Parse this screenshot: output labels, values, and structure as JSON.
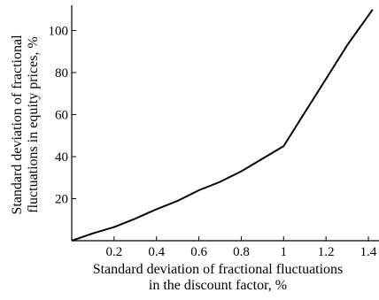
{
  "chart_data": {
    "type": "line",
    "xlabel": [
      "Standard deviation of fractional fluctuations",
      "in the discount factor, %"
    ],
    "ylabel": [
      "Standard deviation of fractional",
      "fluctuations in equity prices, %"
    ],
    "xlim": [
      0,
      1.45
    ],
    "ylim": [
      0,
      112
    ],
    "x_ticks": [
      0.2,
      0.4,
      0.6,
      0.8,
      1,
      1.2,
      1.4
    ],
    "x_tick_labels": [
      "0.2",
      "0.4",
      "0.6",
      "0.8",
      "1",
      "1.2",
      "1.4"
    ],
    "y_ticks": [
      20,
      40,
      60,
      80,
      100
    ],
    "y_tick_labels": [
      "20",
      "40",
      "60",
      "80",
      "100"
    ],
    "grid": false,
    "series": [
      {
        "x": [
          0,
          0.1,
          0.2,
          0.3,
          0.4,
          0.5,
          0.6,
          0.7,
          0.8,
          0.9,
          1.0,
          1.1,
          1.2,
          1.3,
          1.42
        ],
        "y": [
          0,
          3.5,
          6.5,
          10.5,
          15,
          19,
          24,
          28,
          33,
          39,
          45,
          61,
          77,
          93,
          110
        ]
      }
    ],
    "color": "#000000"
  }
}
